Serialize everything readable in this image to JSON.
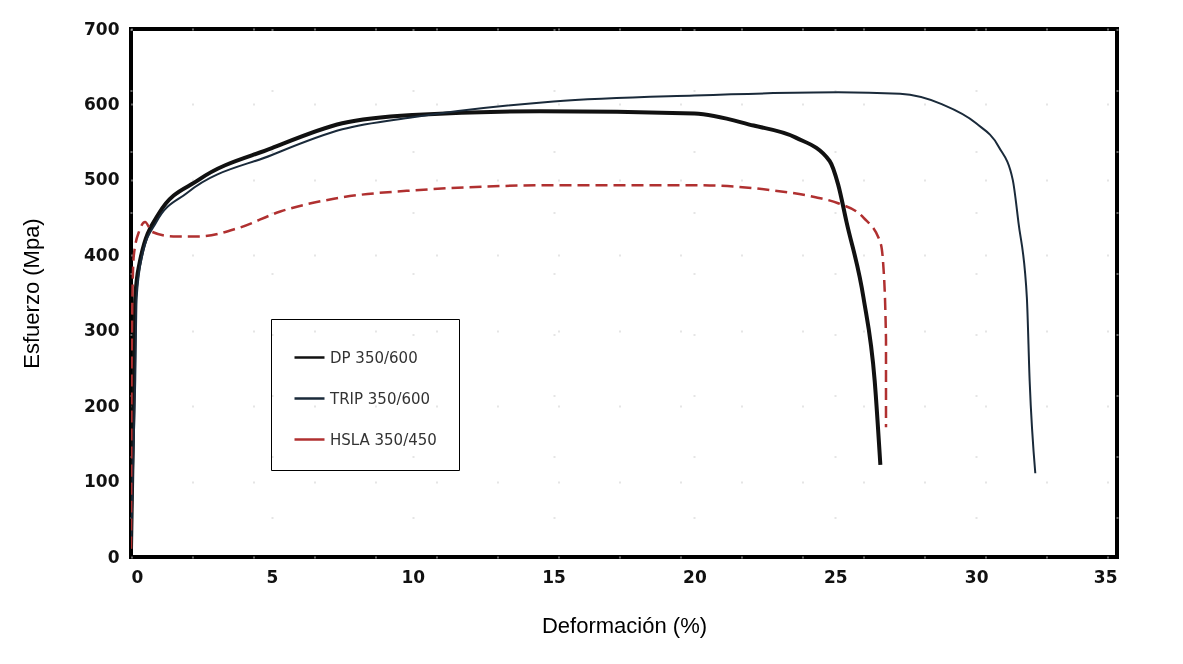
{
  "chart_data": {
    "type": "line",
    "xlabel": "Deformación  (%)",
    "ylabel": "Esfuerzo (Mpa)",
    "xlim": [
      0,
      35
    ],
    "ylim": [
      0,
      700
    ],
    "xticks": [
      0,
      5,
      10,
      15,
      20,
      25,
      30,
      35
    ],
    "yticks": [
      0,
      100,
      200,
      300,
      400,
      500,
      600,
      700
    ],
    "grid": true,
    "legend": "bottom left",
    "series": [
      {
        "name": "DP 350/600",
        "color": "#111111",
        "line_style": "solid",
        "x": [
          0,
          0.1,
          0.15,
          0.3,
          1,
          2.4,
          5,
          7.5,
          10,
          14.5,
          20,
          22.1,
          23.6,
          24.8,
          25.1,
          25.4,
          26,
          26.4,
          26.6
        ],
        "values": [
          11,
          233,
          344,
          389,
          456,
          500,
          542,
          575,
          586,
          591,
          588,
          572,
          556,
          525,
          494,
          444,
          344,
          233,
          122
        ]
      },
      {
        "name": "TRIP 350/600",
        "color": "#1a2a3a",
        "line_style": "solid",
        "x": [
          0,
          0.15,
          0.2,
          0.4,
          0.9,
          2,
          5,
          7.5,
          10,
          15,
          20,
          25.1,
          27.3,
          28.8,
          30,
          30.8,
          31.3,
          31.5,
          31.8,
          31.9,
          32.1
        ],
        "values": [
          11,
          233,
          344,
          400,
          444,
          483,
          533,
          567,
          583,
          604,
          612,
          616,
          614,
          600,
          575,
          544,
          500,
          444,
          344,
          233,
          111
        ]
      },
      {
        "name": "HSLA 350/450",
        "color": "#b03030",
        "line_style": "dashed",
        "x": [
          0,
          0.02,
          0.05,
          0.1,
          0.3,
          0.5,
          0.75,
          1.5,
          2.4,
          3.8,
          5.3,
          7.2,
          10,
          15.3,
          20,
          22.8,
          24.3,
          25.1,
          26,
          26.6,
          26.7,
          26.8,
          26.8
        ],
        "values": [
          11,
          233,
          344,
          400,
          433,
          444,
          431,
          425,
          425,
          436,
          458,
          475,
          486,
          493,
          493,
          486,
          477,
          469,
          450,
          417,
          389,
          289,
          172
        ]
      }
    ]
  }
}
